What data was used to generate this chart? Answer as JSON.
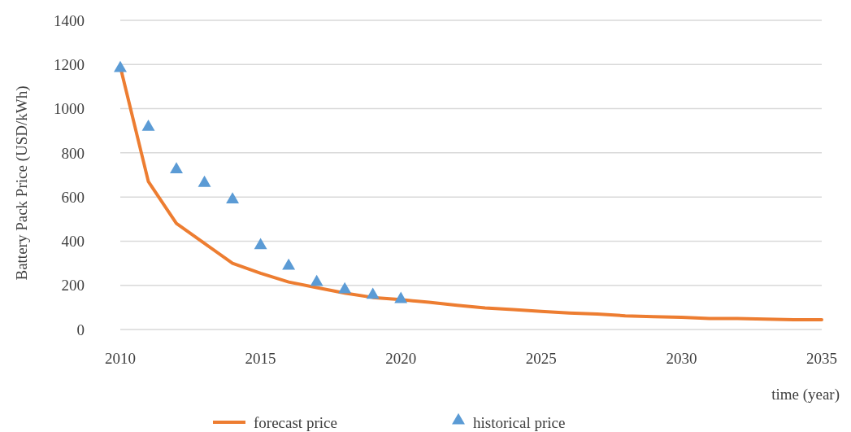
{
  "chart_data": {
    "type": "line",
    "xlabel": "time (year)",
    "ylabel": "Battery Pack Price (USD/kWh)",
    "xlim": [
      2010,
      2035
    ],
    "xticks": [
      2010,
      2015,
      2020,
      2025,
      2030,
      2035
    ],
    "ylim": [
      0,
      1400
    ],
    "yticks": [
      0,
      200,
      400,
      600,
      800,
      1000,
      1200,
      1400
    ],
    "grid": "y",
    "legend": "bottom",
    "series": [
      {
        "name": "forecast price",
        "color": "#ed7d31",
        "x": [
          2010,
          2011,
          2012,
          2013,
          2014,
          2015,
          2016,
          2017,
          2018,
          2019,
          2020,
          2021,
          2022,
          2023,
          2024,
          2025,
          2026,
          2027,
          2028,
          2029,
          2030,
          2031,
          2032,
          2033,
          2034,
          2035
        ],
        "values": [
          1190,
          670,
          480,
          390,
          300,
          255,
          215,
          190,
          165,
          145,
          135,
          123,
          110,
          98,
          90,
          82,
          75,
          70,
          62,
          58,
          55,
          50,
          50,
          47,
          44,
          44
        ]
      },
      {
        "name": "historical price",
        "type": "scatter",
        "marker": "triangle",
        "color": "#5b9bd5",
        "x": [
          2010,
          2011,
          2012,
          2013,
          2014,
          2015,
          2016,
          2017,
          2018,
          2019,
          2020
        ],
        "values": [
          1183,
          917,
          724,
          663,
          588,
          381,
          288,
          214,
          181,
          156,
          137
        ]
      }
    ]
  }
}
